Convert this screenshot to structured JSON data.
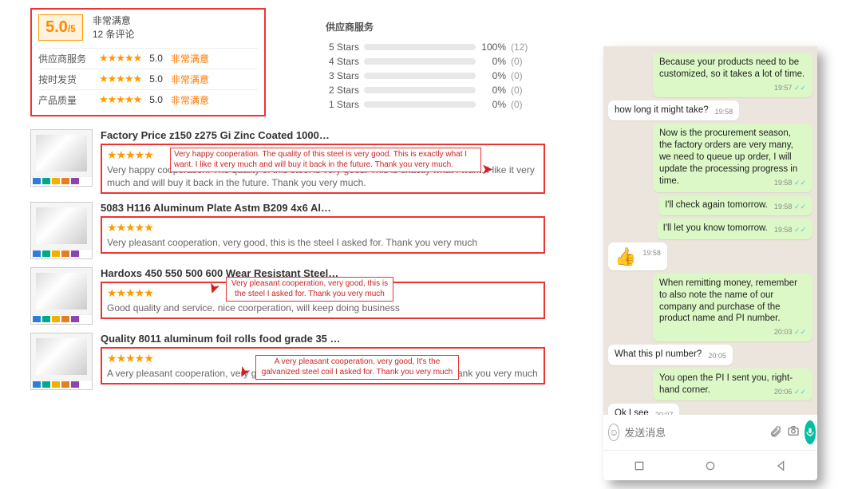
{
  "rating": {
    "score": "5.0",
    "outof": "/5",
    "satisfaction": "非常满意",
    "review_count": "12 条评论",
    "stars_glyph": "★★★★★",
    "rows": [
      {
        "label": "供应商服务",
        "value": "5.0",
        "tag": "非常满意"
      },
      {
        "label": "按时发货",
        "value": "5.0",
        "tag": "非常满意"
      },
      {
        "label": "产品质量",
        "value": "5.0",
        "tag": "非常满意"
      }
    ]
  },
  "service": {
    "title": "供应商服务",
    "bars": [
      {
        "label": "5 Stars",
        "pct": 100,
        "pct_text": "100%",
        "count": "(12)"
      },
      {
        "label": "4 Stars",
        "pct": 0,
        "pct_text": "0%",
        "count": "(0)"
      },
      {
        "label": "3 Stars",
        "pct": 0,
        "pct_text": "0%",
        "count": "(0)"
      },
      {
        "label": "2 Stars",
        "pct": 0,
        "pct_text": "0%",
        "count": "(0)"
      },
      {
        "label": "1 Stars",
        "pct": 0,
        "pct_text": "0%",
        "count": "(0)"
      }
    ]
  },
  "reviews": [
    {
      "title": "Factory Price z150 z275 Gi Zinc Coated 1000…",
      "text": "Very happy cooperation. The quality of this steel is very good. This is exactly what I want. I like it very much and will buy it back in the future. Thank you very much."
    },
    {
      "title": "5083 H116 Aluminum Plate Astm B209 4x6 Al…",
      "text": "Very pleasant cooperation, very good, this is the steel I asked for. Thank you very much"
    },
    {
      "title": "Hardoxs 450 550 500 600 Wear Resistant Steel…",
      "text": "Good quality and service. nice coorperation, will keep doing business"
    },
    {
      "title": "Quality 8011 aluminum foil rolls food grade 35 …",
      "text": "A very pleasant cooperation, very good, It's the galvanized steel coil I asked for. Thank you very much"
    }
  ],
  "annotations": {
    "a1": "Very happy cooperation. The quality of this steel is very good. This is exactly what I want. I like it very much and will buy it back in the future. Thank you very much.",
    "a2": "Very pleasant cooperation, very good, this is the steel I asked for. Thank you very much",
    "a3": "A very pleasant cooperation, very good, It's the galvanized steel coil I asked for. Thank you very much"
  },
  "thumb_badges": [
    "#2e7dd7",
    "#0a8",
    "#f2b100",
    "#e67e22",
    "#8e44ad"
  ],
  "chat": {
    "messages": [
      {
        "dir": "out",
        "text": "Because your products need to be customized, so it takes a lot of time.",
        "time": "19:57",
        "ticks": true
      },
      {
        "dir": "in",
        "text": "how long it might take?",
        "time": "19:58"
      },
      {
        "dir": "out",
        "text": "Now is the procurement season, the factory orders are very many, we need to queue up order, I will update the processing progress in time.",
        "time": "19:58",
        "ticks": true
      },
      {
        "dir": "out",
        "text": "I'll check again tomorrow.",
        "time": "19:58",
        "ticks": true
      },
      {
        "dir": "out",
        "text": "I'll let you know tomorrow.",
        "time": "19:58",
        "ticks": true
      },
      {
        "dir": "in",
        "text": "👍",
        "time": "19:58",
        "thumbs": true
      },
      {
        "dir": "out",
        "text": "When remitting money, remember to also note the name of our company and purchase of the product name and PI number.",
        "time": "20:03",
        "ticks": true
      },
      {
        "dir": "in",
        "text": "What this pI number?",
        "time": "20:05"
      },
      {
        "dir": "out",
        "text": "You open the PI I sent you, right-hand corner.",
        "time": "20:06",
        "ticks": true
      },
      {
        "dir": "in",
        "text": "Ok I see",
        "time": "20:07"
      }
    ],
    "placeholder": "发送消息"
  }
}
